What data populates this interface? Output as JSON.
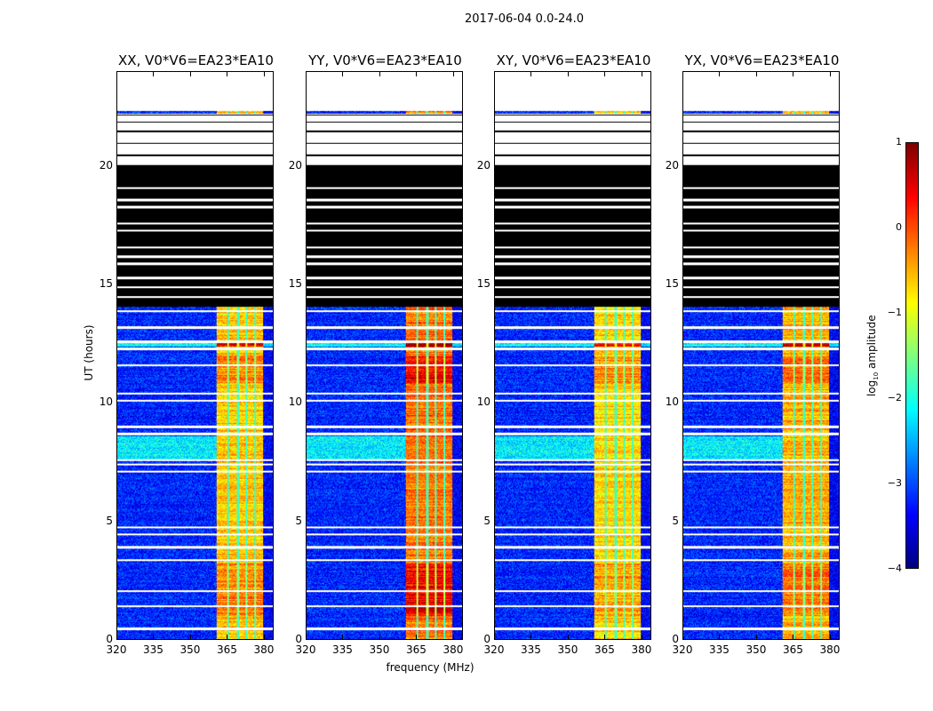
{
  "chart_data": {
    "type": "heatmap",
    "suptitle": "2017-06-04 0.0-24.0",
    "xlabel": "frequency (MHz)",
    "ylabel": "UT (hours)",
    "xlim": [
      320,
      384
    ],
    "ylim": [
      0,
      24
    ],
    "xticks": [
      "320",
      "335",
      "350",
      "365",
      "380"
    ],
    "yticks": [
      "0",
      "5",
      "10",
      "15",
      "20"
    ],
    "panels": [
      {
        "title": "XX, V0*V6=EA23*EA10",
        "band_level": -0.6
      },
      {
        "title": "YY, V0*V6=EA23*EA10",
        "band_level": -0.2
      },
      {
        "title": "XY, V0*V6=EA23*EA10",
        "band_level": -0.7
      },
      {
        "title": "YX, V0*V6=EA23*EA10",
        "band_level": -0.5
      }
    ],
    "features": {
      "background_level": -3.2,
      "bright_band_mhz": [
        360.5,
        380
      ],
      "flagged_black_hours": [
        14.1,
        20.1
      ],
      "blank_white_hours": [
        20.1,
        22.2
      ],
      "isolated_scan_hour": 22.3,
      "top_blank_hours": [
        22.45,
        24
      ]
    },
    "colorbar": {
      "label": "log10 amplitude",
      "label_main": "log",
      "label_sub": "10",
      "label_rest": " amplitude",
      "range": [
        -4,
        1
      ],
      "ticks": [
        "1",
        "0",
        "−1",
        "−2",
        "−3",
        "−4"
      ],
      "colormap": "jet"
    }
  }
}
